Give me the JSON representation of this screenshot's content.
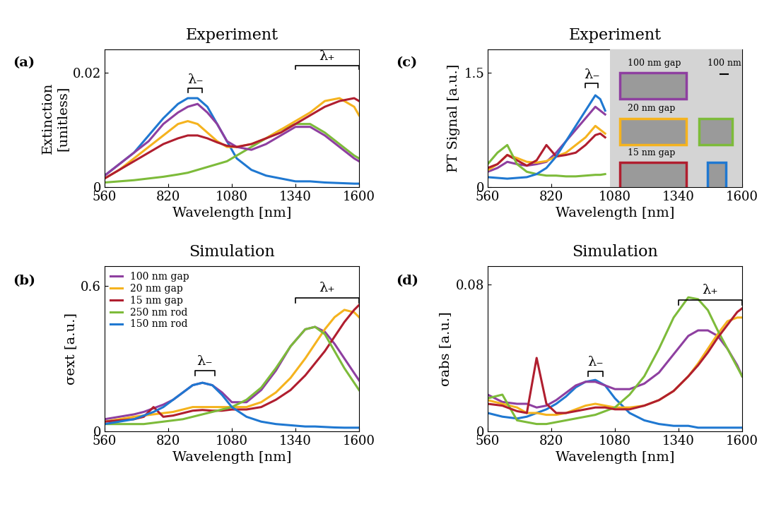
{
  "chart_data": [
    {
      "type": "line",
      "panel": "(a)",
      "title": "Experiment",
      "x_label": "Wavelength [nm]",
      "y_label": "Extinction\n[unitless]",
      "xlim": [
        560,
        1600
      ],
      "ylim": [
        0,
        0.024
      ],
      "xticks": [
        560,
        820,
        1080,
        1340,
        1600
      ],
      "yticks": [
        0,
        0.02
      ],
      "x": [
        560,
        620,
        680,
        740,
        800,
        860,
        900,
        940,
        980,
        1020,
        1060,
        1100,
        1160,
        1220,
        1280,
        1340,
        1400,
        1460,
        1520,
        1580,
        1600
      ],
      "series": [
        {
          "color": "#1f78d1",
          "values": [
            0.002,
            0.004,
            0.006,
            0.009,
            0.012,
            0.0145,
            0.0155,
            0.0155,
            0.014,
            0.011,
            0.008,
            0.005,
            0.003,
            0.002,
            0.0015,
            0.001,
            0.001,
            0.0008,
            0.0007,
            0.0006,
            0.0006
          ]
        },
        {
          "color": "#7dbb3a",
          "values": [
            0.0008,
            0.001,
            0.0012,
            0.0015,
            0.0018,
            0.0022,
            0.0025,
            0.003,
            0.0035,
            0.004,
            0.0045,
            0.0055,
            0.007,
            0.0085,
            0.01,
            0.011,
            0.011,
            0.0095,
            0.0075,
            0.0055,
            0.005
          ]
        },
        {
          "color": "#f5b31e",
          "values": [
            0.0015,
            0.003,
            0.005,
            0.007,
            0.009,
            0.011,
            0.0115,
            0.011,
            0.0095,
            0.008,
            0.007,
            0.007,
            0.0075,
            0.0085,
            0.01,
            0.0115,
            0.013,
            0.015,
            0.0155,
            0.014,
            0.0125
          ]
        },
        {
          "color": "#8e3fa0",
          "values": [
            0.002,
            0.004,
            0.006,
            0.008,
            0.011,
            0.013,
            0.014,
            0.0145,
            0.013,
            0.011,
            0.008,
            0.007,
            0.0065,
            0.0075,
            0.009,
            0.0105,
            0.0105,
            0.009,
            0.007,
            0.005,
            0.0045
          ]
        },
        {
          "color": "#b01e2f",
          "values": [
            0.0015,
            0.003,
            0.0045,
            0.006,
            0.0075,
            0.0085,
            0.009,
            0.009,
            0.0085,
            0.0078,
            0.0072,
            0.007,
            0.0075,
            0.0085,
            0.0095,
            0.011,
            0.0125,
            0.014,
            0.015,
            0.0155,
            0.015
          ]
        }
      ],
      "annotations": [
        {
          "text": "λ₋",
          "x": [
            900,
            960
          ],
          "y": 0.0165
        },
        {
          "text": "λ₊",
          "x": [
            1340,
            1600
          ],
          "y": 0.0205
        }
      ]
    },
    {
      "type": "line",
      "panel": "(b)",
      "title": "Simulation",
      "x_label": "Wavelength [nm]",
      "y_label": "σext [a.u.]",
      "xlim": [
        560,
        1600
      ],
      "ylim": [
        0,
        0.68
      ],
      "xticks": [
        560,
        820,
        1080,
        1340,
        1600
      ],
      "yticks": [
        0,
        0.6
      ],
      "legend": "upper left",
      "x": [
        560,
        620,
        680,
        720,
        760,
        800,
        840,
        880,
        920,
        960,
        1000,
        1040,
        1080,
        1140,
        1200,
        1260,
        1320,
        1380,
        1420,
        1460,
        1500,
        1540,
        1580,
        1600
      ],
      "series": [
        {
          "name": "100 nm gap",
          "color": "#8e3fa0",
          "values": [
            0.05,
            0.06,
            0.07,
            0.08,
            0.095,
            0.11,
            0.13,
            0.16,
            0.19,
            0.2,
            0.19,
            0.16,
            0.12,
            0.12,
            0.17,
            0.25,
            0.35,
            0.42,
            0.43,
            0.41,
            0.36,
            0.3,
            0.24,
            0.21
          ]
        },
        {
          "name": "20 nm gap",
          "color": "#f5b31e",
          "values": [
            0.04,
            0.05,
            0.06,
            0.065,
            0.07,
            0.075,
            0.08,
            0.09,
            0.1,
            0.1,
            0.1,
            0.1,
            0.1,
            0.1,
            0.12,
            0.16,
            0.22,
            0.3,
            0.36,
            0.42,
            0.47,
            0.5,
            0.49,
            0.47
          ]
        },
        {
          "name": "15 nm gap",
          "color": "#b01e2f",
          "values": [
            0.04,
            0.045,
            0.05,
            0.06,
            0.1,
            0.06,
            0.065,
            0.075,
            0.085,
            0.088,
            0.085,
            0.085,
            0.09,
            0.09,
            0.1,
            0.13,
            0.17,
            0.23,
            0.28,
            0.33,
            0.39,
            0.45,
            0.5,
            0.52
          ]
        },
        {
          "name": "250 nm rod",
          "color": "#7dbb3a",
          "values": [
            0.03,
            0.03,
            0.03,
            0.03,
            0.035,
            0.04,
            0.045,
            0.05,
            0.06,
            0.07,
            0.08,
            0.09,
            0.1,
            0.13,
            0.18,
            0.26,
            0.35,
            0.42,
            0.43,
            0.4,
            0.33,
            0.26,
            0.2,
            0.17
          ]
        },
        {
          "name": "150 nm rod",
          "color": "#1f78d1",
          "values": [
            0.03,
            0.04,
            0.05,
            0.065,
            0.08,
            0.1,
            0.13,
            0.16,
            0.19,
            0.2,
            0.19,
            0.15,
            0.1,
            0.06,
            0.04,
            0.03,
            0.025,
            0.02,
            0.02,
            0.018,
            0.016,
            0.015,
            0.015,
            0.015
          ]
        }
      ],
      "annotations": [
        {
          "text": "λ₋",
          "x": [
            930,
            1010
          ],
          "y": 0.23
        },
        {
          "text": "λ₊",
          "x": [
            1340,
            1600
          ],
          "y": 0.53
        }
      ]
    },
    {
      "type": "line",
      "panel": "(c)",
      "title": "Experiment",
      "x_label": "Wavelength [nm]",
      "y_label": "PT Signal [a.u.]",
      "xlim": [
        560,
        1600
      ],
      "ylim": [
        0,
        1.8
      ],
      "xticks": [
        560,
        820,
        1080,
        1340,
        1600
      ],
      "yticks": [
        0,
        1.5
      ],
      "x": [
        560,
        600,
        640,
        680,
        720,
        760,
        800,
        840,
        880,
        920,
        960,
        1000,
        1020,
        1040
      ],
      "series": [
        {
          "color": "#8e3fa0",
          "values": [
            0.2,
            0.25,
            0.33,
            0.3,
            0.28,
            0.3,
            0.33,
            0.45,
            0.6,
            0.75,
            0.9,
            1.05,
            1.0,
            0.95
          ]
        },
        {
          "color": "#f5b31e",
          "values": [
            0.22,
            0.3,
            0.42,
            0.38,
            0.33,
            0.32,
            0.34,
            0.4,
            0.45,
            0.55,
            0.65,
            0.8,
            0.75,
            0.7
          ]
        },
        {
          "color": "#b01e2f",
          "values": [
            0.25,
            0.3,
            0.42,
            0.35,
            0.28,
            0.35,
            0.55,
            0.4,
            0.42,
            0.45,
            0.55,
            0.68,
            0.7,
            0.65
          ]
        },
        {
          "color": "#7dbb3a",
          "values": [
            0.3,
            0.45,
            0.55,
            0.3,
            0.2,
            0.17,
            0.15,
            0.15,
            0.14,
            0.14,
            0.15,
            0.16,
            0.16,
            0.17
          ]
        },
        {
          "color": "#1f78d1",
          "values": [
            0.13,
            0.12,
            0.11,
            0.12,
            0.13,
            0.17,
            0.25,
            0.4,
            0.6,
            0.8,
            1.0,
            1.2,
            1.15,
            1.0
          ]
        }
      ],
      "inset": {
        "labels": [
          "100 nm gap",
          "20 nm gap",
          "15 nm gap"
        ],
        "scale_bar": "100 nm"
      },
      "annotations": [
        {
          "text": "λ₋",
          "x": [
            960,
            1010
          ],
          "y": 1.3
        }
      ]
    },
    {
      "type": "line",
      "panel": "(d)",
      "title": "Simulation",
      "x_label": "Wavelength [nm]",
      "y_label": "σabs [a.u.]",
      "xlim": [
        560,
        1600
      ],
      "ylim": [
        0,
        0.09
      ],
      "xticks": [
        560,
        820,
        1080,
        1340,
        1600
      ],
      "yticks": [
        0,
        0.08
      ],
      "x": [
        560,
        620,
        680,
        720,
        760,
        800,
        840,
        880,
        920,
        960,
        1000,
        1040,
        1080,
        1140,
        1200,
        1260,
        1320,
        1380,
        1420,
        1460,
        1500,
        1540,
        1580,
        1600
      ],
      "series": [
        {
          "color": "#1f78d1",
          "values": [
            0.01,
            0.008,
            0.007,
            0.008,
            0.01,
            0.012,
            0.015,
            0.019,
            0.024,
            0.027,
            0.028,
            0.025,
            0.018,
            0.01,
            0.006,
            0.004,
            0.003,
            0.003,
            0.002,
            0.002,
            0.002,
            0.002,
            0.002,
            0.002
          ]
        },
        {
          "color": "#8e3fa0",
          "values": [
            0.02,
            0.016,
            0.015,
            0.015,
            0.013,
            0.014,
            0.017,
            0.021,
            0.025,
            0.027,
            0.027,
            0.025,
            0.023,
            0.023,
            0.026,
            0.032,
            0.042,
            0.052,
            0.055,
            0.055,
            0.052,
            0.045,
            0.036,
            0.03
          ]
        },
        {
          "color": "#f5b31e",
          "values": [
            0.017,
            0.015,
            0.013,
            0.01,
            0.01,
            0.009,
            0.009,
            0.01,
            0.012,
            0.014,
            0.015,
            0.014,
            0.013,
            0.013,
            0.014,
            0.017,
            0.022,
            0.03,
            0.037,
            0.045,
            0.053,
            0.06,
            0.062,
            0.062
          ]
        },
        {
          "color": "#7dbb3a",
          "values": [
            0.018,
            0.02,
            0.006,
            0.005,
            0.004,
            0.004,
            0.005,
            0.006,
            0.007,
            0.008,
            0.009,
            0.011,
            0.013,
            0.02,
            0.03,
            0.045,
            0.062,
            0.073,
            0.072,
            0.066,
            0.055,
            0.045,
            0.035,
            0.03
          ]
        },
        {
          "color": "#b01e2f",
          "values": [
            0.015,
            0.014,
            0.011,
            0.01,
            0.04,
            0.015,
            0.01,
            0.01,
            0.011,
            0.012,
            0.013,
            0.013,
            0.012,
            0.012,
            0.014,
            0.017,
            0.022,
            0.03,
            0.036,
            0.043,
            0.051,
            0.058,
            0.065,
            0.067
          ]
        }
      ],
      "annotations": [
        {
          "text": "λ₋",
          "x": [
            970,
            1030
          ],
          "y": 0.03
        },
        {
          "text": "λ₊",
          "x": [
            1340,
            1600
          ],
          "y": 0.069
        }
      ]
    }
  ]
}
